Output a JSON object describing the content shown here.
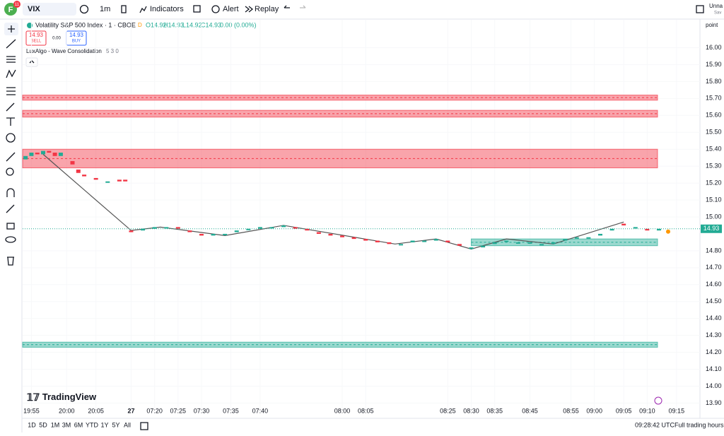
{
  "toolbar": {
    "avatar": "F",
    "badge": "11",
    "symbol": "VIX",
    "interval": "1m",
    "indicators": "Indicators",
    "alert": "Alert",
    "replay": "Replay",
    "layout_name": "Unna",
    "save_status": "Sav"
  },
  "legend": {
    "symbol_title": "Volatility S&P 500 Index · 1 · CBOE",
    "session": "D",
    "ohlc": [
      "O14.92",
      "H14.93",
      "L14.92",
      "C14.93",
      "0.00 (0.00%)"
    ],
    "sell_price": "14.93",
    "sell": "SELL",
    "spread": "0.00",
    "buy_price": "14.93",
    "buy": "BUY",
    "indicator": "LuxAlgo - Wave Consolidation",
    "indicator_params": "5 3 0"
  },
  "logo": "TradingView",
  "chart_data": {
    "type": "candlestick",
    "y_axis_label": "point",
    "ylim": [
      13.86,
      16.165
    ],
    "xlim": [
      -0.5,
      115
    ],
    "yticks": [
      {
        "value": 16,
        "label": "16.00"
      },
      {
        "value": 15.9,
        "label": "15.90"
      },
      {
        "value": 15.8,
        "label": "15.80"
      },
      {
        "value": 15.7,
        "label": "15.70"
      },
      {
        "value": 15.6,
        "label": "15.60"
      },
      {
        "value": 15.5,
        "label": "15.50"
      },
      {
        "value": 15.4,
        "label": "15.40"
      },
      {
        "value": 15.3,
        "label": "15.30"
      },
      {
        "value": 15.2,
        "label": "15.20"
      },
      {
        "value": 15.1,
        "label": "15.10"
      },
      {
        "value": 15,
        "label": "15.00"
      },
      {
        "value": 14.8,
        "label": "14.80"
      },
      {
        "value": 14.7,
        "label": "14.70"
      },
      {
        "value": 14.6,
        "label": "14.60"
      },
      {
        "value": 14.5,
        "label": "14.50"
      },
      {
        "value": 14.4,
        "label": "14.40"
      },
      {
        "value": 14.3,
        "label": "14.30"
      },
      {
        "value": 14.2,
        "label": "14.20"
      },
      {
        "value": 14.1,
        "label": "14.10"
      },
      {
        "value": 14,
        "label": "14.00"
      },
      {
        "value": 13.9,
        "label": "13.90"
      }
    ],
    "xticks": [
      {
        "value": 1,
        "label": "19:55"
      },
      {
        "value": 7,
        "label": "20:00"
      },
      {
        "value": 12,
        "label": "20:05"
      },
      {
        "value": 18,
        "label": "27"
      },
      {
        "value": 22,
        "label": "07:20"
      },
      {
        "value": 26,
        "label": "07:25"
      },
      {
        "value": 30,
        "label": "07:30"
      },
      {
        "value": 35,
        "label": "07:35"
      },
      {
        "value": 40,
        "label": "07:40"
      },
      {
        "value": 54,
        "label": "08:00"
      },
      {
        "value": 58,
        "label": "08:05"
      },
      {
        "value": 72,
        "label": "08:25"
      },
      {
        "value": 76,
        "label": "08:30"
      },
      {
        "value": 80,
        "label": "08:35"
      },
      {
        "value": 86,
        "label": "08:45"
      },
      {
        "value": 93,
        "label": "08:55"
      },
      {
        "value": 97,
        "label": "09:00"
      },
      {
        "value": 102,
        "label": "09:05"
      },
      {
        "value": 106,
        "label": "09:10"
      },
      {
        "value": 111,
        "label": "09:15"
      }
    ],
    "grid": true,
    "up_color": "#22ab94",
    "down_color": "#f23645",
    "candles": {
      "x": [
        0,
        1,
        2,
        3,
        4,
        5,
        6,
        8,
        9,
        10,
        12,
        14,
        16,
        17,
        18,
        20,
        22,
        24,
        26,
        28,
        30,
        32,
        34,
        36,
        38,
        40,
        42,
        44,
        46,
        48,
        50,
        52,
        54,
        56,
        58,
        60,
        62,
        64,
        66,
        68,
        70,
        72,
        74,
        76,
        78,
        80,
        82,
        84,
        86,
        88,
        90,
        92,
        94,
        96,
        98,
        100,
        102,
        104,
        106,
        108
      ],
      "open": [
        15.34,
        15.36,
        15.38,
        15.37,
        15.39,
        15.38,
        15.36,
        15.33,
        15.28,
        15.25,
        15.23,
        15.21,
        15.22,
        15.22,
        14.92,
        14.92,
        14.93,
        14.94,
        14.94,
        14.92,
        14.9,
        14.89,
        14.9,
        14.91,
        14.93,
        14.93,
        14.94,
        14.94,
        14.94,
        14.93,
        14.91,
        14.9,
        14.89,
        14.88,
        14.87,
        14.86,
        14.85,
        14.84,
        14.85,
        14.86,
        14.86,
        14.86,
        14.84,
        14.81,
        14.82,
        14.84,
        14.86,
        14.85,
        14.85,
        14.84,
        14.84,
        14.86,
        14.88,
        14.88,
        14.89,
        14.92,
        14.96,
        14.94,
        14.93,
        14.92
      ],
      "close": [
        15.36,
        15.38,
        15.37,
        15.39,
        15.38,
        15.36,
        15.38,
        15.31,
        15.26,
        15.24,
        15.22,
        15.21,
        15.21,
        15.21,
        14.91,
        14.93,
        14.94,
        14.94,
        14.93,
        14.91,
        14.89,
        14.9,
        14.9,
        14.92,
        14.93,
        14.94,
        14.94,
        14.95,
        14.93,
        14.92,
        14.9,
        14.89,
        14.88,
        14.87,
        14.86,
        14.85,
        14.84,
        14.84,
        14.86,
        14.86,
        14.87,
        14.85,
        14.83,
        14.82,
        14.83,
        14.85,
        14.86,
        14.85,
        14.85,
        14.84,
        14.85,
        14.87,
        14.88,
        14.88,
        14.9,
        14.93,
        14.95,
        14.94,
        14.92,
        14.93
      ]
    },
    "wave": {
      "x": [
        3,
        18,
        23,
        34,
        44,
        63,
        70,
        76,
        82,
        90,
        102
      ],
      "values": [
        15.37,
        14.92,
        14.94,
        14.89,
        14.95,
        14.84,
        14.87,
        14.81,
        14.87,
        14.84,
        14.97
      ],
      "color": "#555555"
    },
    "zones": [
      {
        "low": 15.69,
        "high": 15.72,
        "color": "#f23645"
      },
      {
        "low": 15.59,
        "high": 15.63,
        "color": "#f23645"
      },
      {
        "low": 15.29,
        "high": 15.4,
        "color": "#f23645"
      },
      {
        "low": 14.83,
        "high": 14.87,
        "color": "#22ab94",
        "start": 76
      },
      {
        "low": 14.23,
        "high": 14.26,
        "color": "#22ab94"
      }
    ],
    "last_price": {
      "value": 14.93,
      "label": "14.93"
    }
  },
  "footer": {
    "ranges": [
      "1D",
      "5D",
      "1M",
      "3M",
      "6M",
      "YTD",
      "1Y",
      "5Y",
      "All"
    ],
    "clock": "09:28:42 UTC",
    "session": "Full trading hours"
  }
}
